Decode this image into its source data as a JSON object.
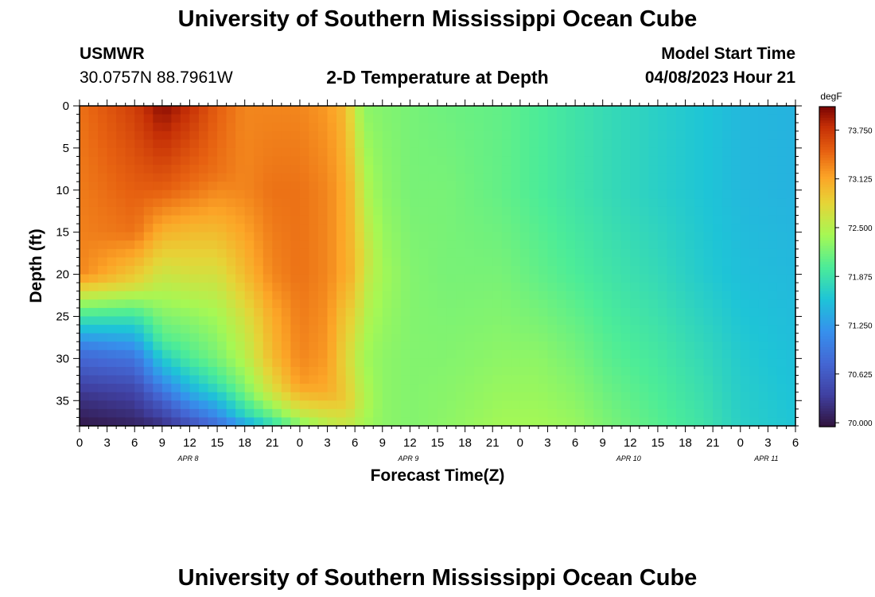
{
  "header": {
    "title": "University of Southern Mississippi Ocean Cube",
    "station_id": "USMWR",
    "coordinates": "30.0757N  88.7961W",
    "plot_title": "2-D Temperature at Depth",
    "model_label": "Model Start Time",
    "model_start": "04/08/2023 Hour 21",
    "footer_title": "University of Southern Mississippi Ocean Cube"
  },
  "chart_data": {
    "type": "heatmap",
    "title": "2-D Temperature at Depth",
    "xlabel": "Forecast Time(Z)",
    "ylabel": "Depth (ft)",
    "x_ticks": [
      "0",
      "3",
      "6",
      "9",
      "12",
      "15",
      "18",
      "21",
      "0",
      "3",
      "6",
      "9",
      "12",
      "15",
      "18",
      "21",
      "0",
      "3",
      "6",
      "9",
      "12",
      "15",
      "18",
      "21",
      "0",
      "3",
      "6"
    ],
    "day_labels": [
      {
        "label": "APR 8",
        "tick_index": 4
      },
      {
        "label": "APR 9",
        "tick_index": 12
      },
      {
        "label": "APR 10",
        "tick_index": 20
      },
      {
        "label": "APR 11",
        "tick_index": 25
      }
    ],
    "xlim_hours": [
      0,
      78
    ],
    "y_ticks": [
      0,
      5,
      10,
      15,
      20,
      25,
      30,
      35
    ],
    "ylim": [
      0,
      38
    ],
    "colorbar": {
      "unit": "degF",
      "min": 69.95,
      "max": 74.05,
      "ticks": [
        "70.000",
        "70.625",
        "71.250",
        "71.875",
        "72.500",
        "73.125",
        "73.750"
      ]
    },
    "profiles": [
      {
        "hour": 0,
        "depths": [
          0,
          20,
          24,
          29,
          34,
          38
        ],
        "temps": [
          73.4,
          73.3,
          72.2,
          70.9,
          70.3,
          70.0
        ]
      },
      {
        "hour": 6,
        "depths": [
          0,
          15,
          21,
          25,
          30,
          34,
          38
        ],
        "temps": [
          73.7,
          73.4,
          72.8,
          71.9,
          70.9,
          70.4,
          70.1
        ]
      },
      {
        "hour": 9,
        "depths": [
          0,
          10,
          18,
          23,
          28,
          32,
          35,
          38
        ],
        "temps": [
          74.0,
          73.5,
          72.8,
          72.4,
          72.0,
          71.3,
          70.7,
          70.2
        ]
      },
      {
        "hour": 12,
        "depths": [
          0,
          10,
          15,
          20,
          25,
          30,
          34,
          38
        ],
        "temps": [
          73.8,
          73.4,
          73.0,
          72.7,
          72.3,
          72.0,
          71.4,
          70.5
        ]
      },
      {
        "hour": 15,
        "depths": [
          0,
          8,
          15,
          20,
          25,
          30,
          33,
          36,
          38
        ],
        "temps": [
          73.5,
          73.4,
          73.0,
          72.7,
          72.4,
          72.2,
          71.9,
          71.3,
          70.8
        ]
      },
      {
        "hour": 18,
        "depths": [
          0,
          10,
          20,
          25,
          30,
          34,
          37,
          38
        ],
        "temps": [
          73.3,
          73.3,
          73.0,
          72.7,
          72.5,
          72.2,
          71.7,
          71.2
        ]
      },
      {
        "hour": 21,
        "depths": [
          0,
          10,
          20,
          25,
          30,
          34,
          36,
          38
        ],
        "temps": [
          73.3,
          73.4,
          73.3,
          73.1,
          73.0,
          72.7,
          72.3,
          71.8
        ]
      },
      {
        "hour": 24,
        "depths": [
          0,
          10,
          20,
          30,
          33,
          35,
          37,
          38
        ],
        "temps": [
          73.3,
          73.4,
          73.4,
          73.3,
          73.2,
          72.9,
          72.5,
          72.2
        ]
      },
      {
        "hour": 27,
        "depths": [
          0,
          10,
          20,
          30,
          34,
          36,
          38
        ],
        "temps": [
          73.2,
          73.3,
          73.3,
          73.2,
          73.1,
          72.8,
          72.5
        ]
      },
      {
        "hour": 29,
        "depths": [
          0,
          10,
          20,
          25,
          30,
          35,
          38
        ],
        "temps": [
          73.0,
          73.1,
          73.1,
          72.9,
          72.8,
          72.9,
          72.6
        ]
      },
      {
        "hour": 30,
        "depths": [
          0,
          10,
          20,
          25,
          30,
          35,
          38
        ],
        "temps": [
          72.6,
          72.9,
          73.0,
          72.8,
          72.6,
          72.7,
          72.5
        ]
      },
      {
        "hour": 31,
        "depths": [
          0,
          10,
          18,
          25,
          30,
          35,
          38
        ],
        "temps": [
          72.3,
          72.5,
          72.7,
          72.5,
          72.4,
          72.5,
          72.4
        ]
      },
      {
        "hour": 33,
        "depths": [
          0,
          10,
          20,
          30,
          38
        ],
        "temps": [
          72.25,
          72.3,
          72.4,
          72.3,
          72.3
        ]
      },
      {
        "hour": 36,
        "depths": [
          0,
          10,
          20,
          30,
          38
        ],
        "temps": [
          72.2,
          72.2,
          72.25,
          72.25,
          72.25
        ]
      },
      {
        "hour": 40,
        "depths": [
          0,
          10,
          20,
          30,
          38
        ],
        "temps": [
          72.15,
          72.2,
          72.2,
          72.25,
          72.3
        ]
      },
      {
        "hour": 46,
        "depths": [
          0,
          10,
          20,
          30,
          38
        ],
        "temps": [
          72.1,
          72.1,
          72.2,
          72.3,
          72.4
        ]
      },
      {
        "hour": 50,
        "depths": [
          0,
          10,
          20,
          30,
          38
        ],
        "temps": [
          72.0,
          72.0,
          72.1,
          72.3,
          72.4
        ]
      },
      {
        "hour": 54,
        "depths": [
          0,
          10,
          20,
          30,
          38
        ],
        "temps": [
          71.9,
          71.9,
          72.0,
          72.2,
          72.35
        ]
      },
      {
        "hour": 58,
        "depths": [
          0,
          10,
          20,
          30,
          38
        ],
        "temps": [
          71.8,
          71.8,
          71.9,
          72.05,
          72.2
        ]
      },
      {
        "hour": 63,
        "depths": [
          0,
          10,
          20,
          30,
          38
        ],
        "temps": [
          71.7,
          71.7,
          71.8,
          71.95,
          72.05
        ]
      },
      {
        "hour": 68,
        "depths": [
          0,
          10,
          20,
          30,
          38
        ],
        "temps": [
          71.6,
          71.6,
          71.65,
          71.8,
          71.9
        ]
      },
      {
        "hour": 72,
        "depths": [
          0,
          10,
          20,
          30,
          38
        ],
        "temps": [
          71.5,
          71.5,
          71.55,
          71.65,
          71.7
        ]
      },
      {
        "hour": 78,
        "depths": [
          0,
          10,
          20,
          30,
          38
        ],
        "temps": [
          71.45,
          71.45,
          71.5,
          71.55,
          71.6
        ]
      }
    ]
  }
}
